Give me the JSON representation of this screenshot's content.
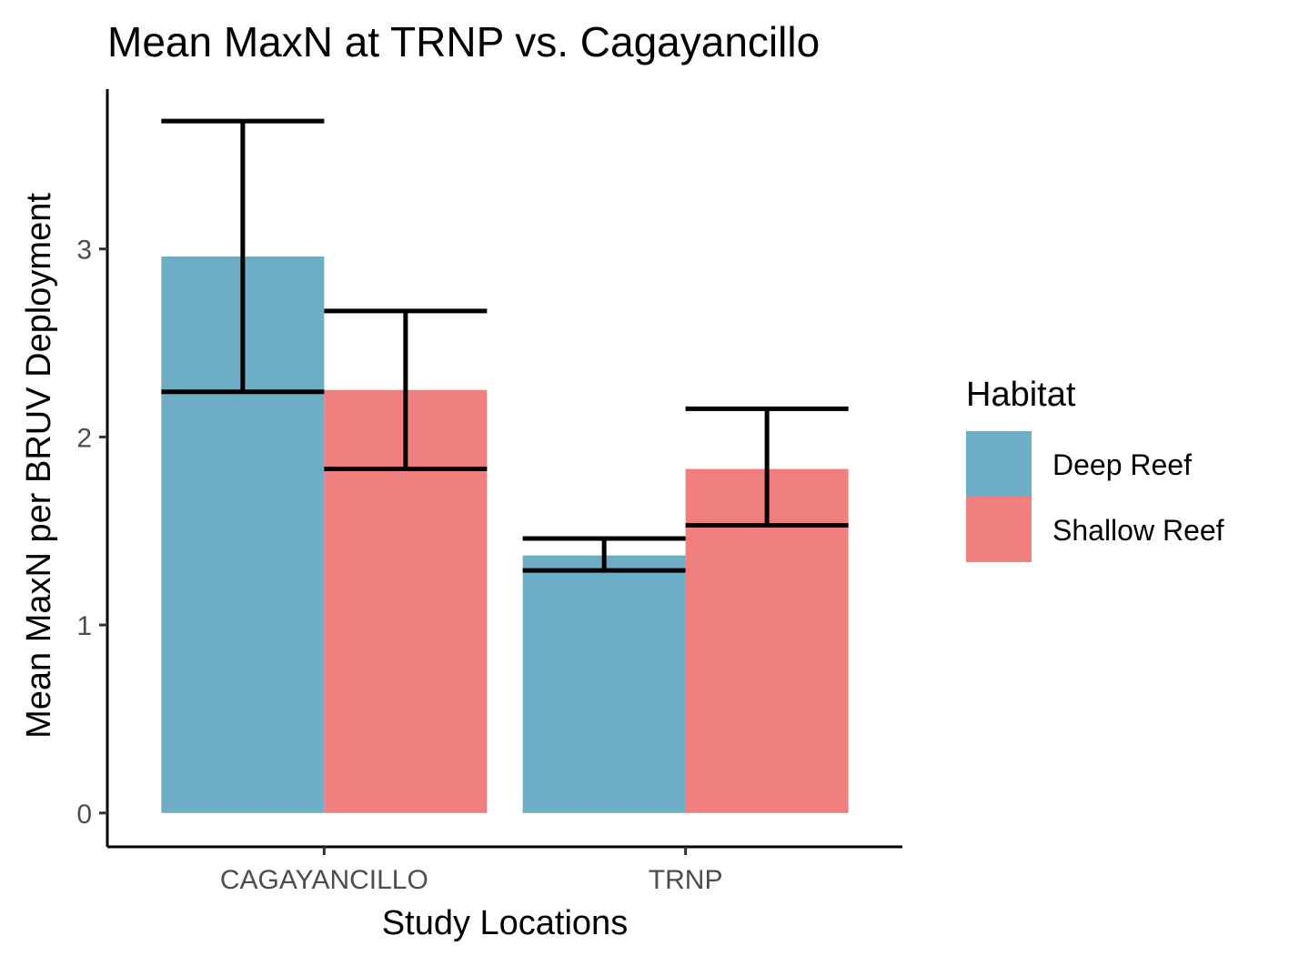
{
  "chart_data": {
    "type": "bar",
    "title": "Mean MaxN at TRNP vs. Cagayancillo",
    "xlabel": "Study Locations",
    "ylabel": "Mean MaxN per BRUV Deployment",
    "categories": [
      "CAGAYANCILLO",
      "TRNP"
    ],
    "y_ticks": [
      "0",
      "1",
      "2",
      "3"
    ],
    "ylim": [
      -0.18,
      3.85
    ],
    "grid": false,
    "legend_title": "Habitat",
    "legend_position": "right",
    "series": [
      {
        "name": "Deep Reef",
        "color": "#6eadc6",
        "values": [
          2.96,
          1.37
        ],
        "error_low": [
          2.24,
          1.29
        ],
        "error_high": [
          3.68,
          1.46
        ]
      },
      {
        "name": "Shallow Reef",
        "color": "#f07f7f",
        "values": [
          2.25,
          1.83
        ],
        "error_low": [
          1.83,
          1.53
        ],
        "error_high": [
          2.67,
          2.15
        ]
      }
    ]
  }
}
